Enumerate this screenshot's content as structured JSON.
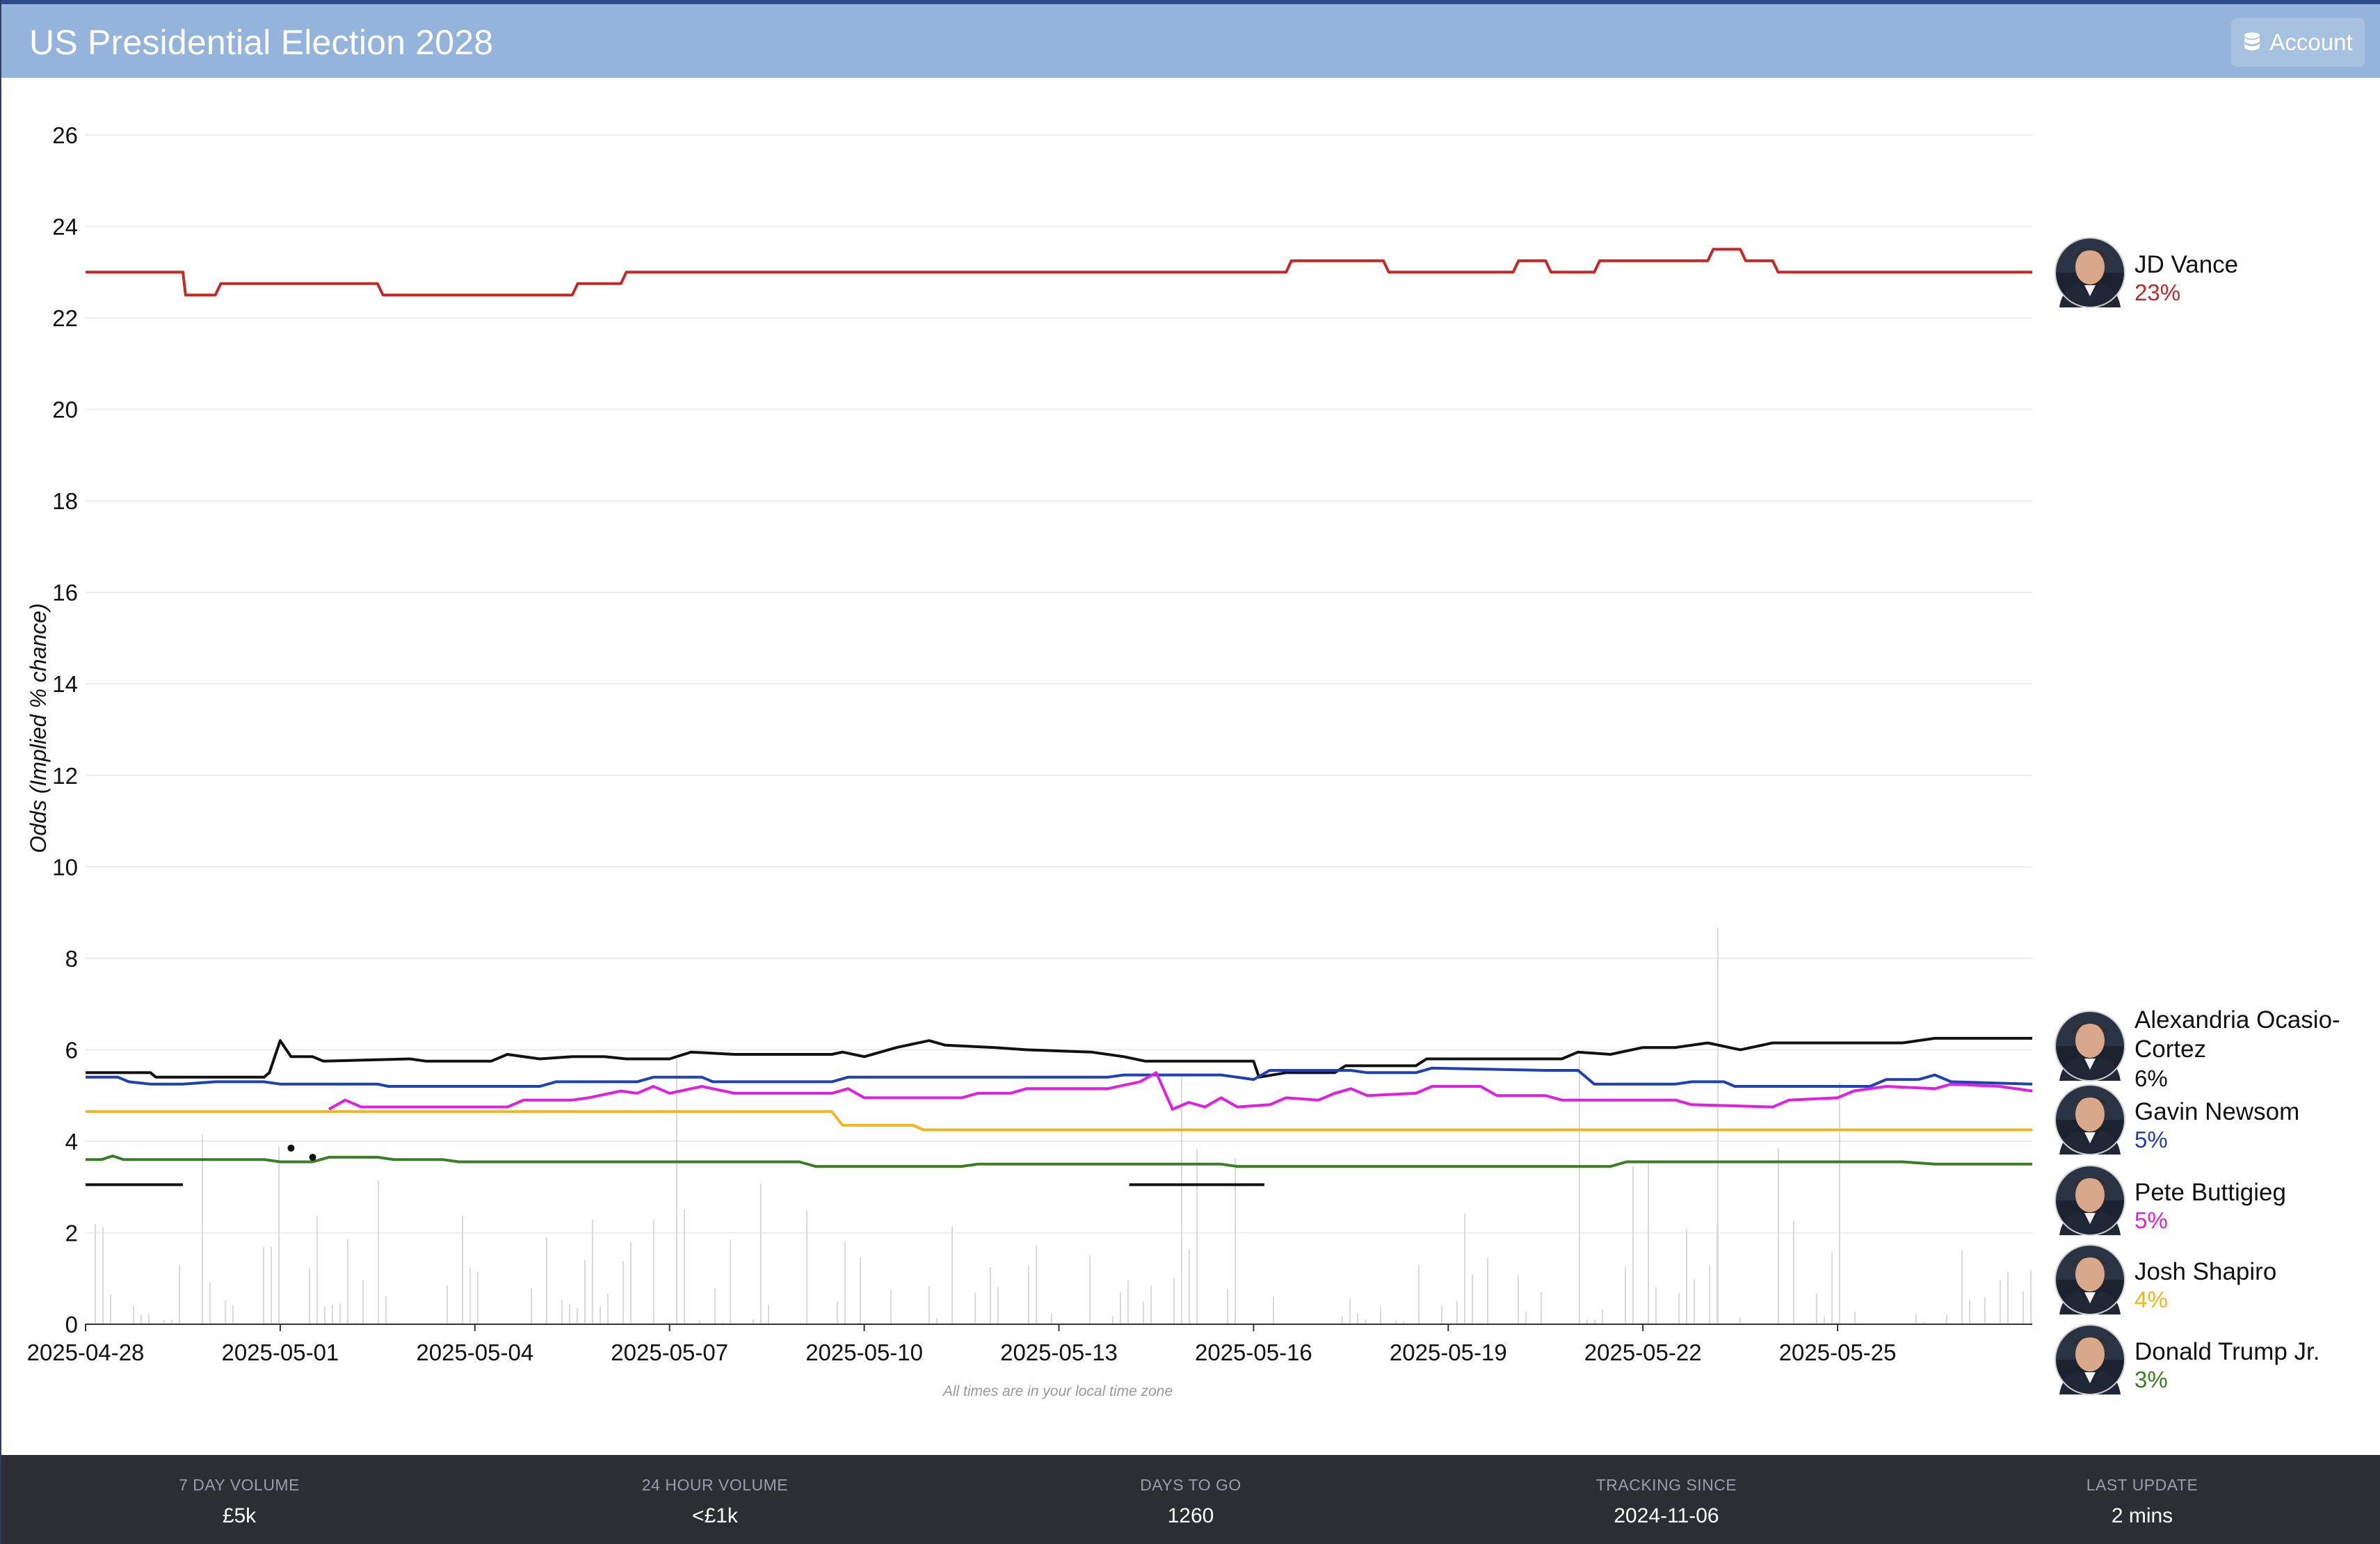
{
  "header": {
    "title": "US Presidential Election 2028",
    "account_label": "Account"
  },
  "chart_data": {
    "type": "line",
    "ylabel": "Odds (Implied % chance)",
    "ylim": [
      0,
      26
    ],
    "yticks": [
      0,
      2,
      4,
      6,
      8,
      10,
      12,
      14,
      16,
      18,
      20,
      22,
      24,
      26
    ],
    "xlim": [
      "2025-04-28",
      "2025-05-28"
    ],
    "xticks": [
      "2025-04-28",
      "2025-05-01",
      "2025-05-04",
      "2025-05-07",
      "2025-05-10",
      "2025-05-13",
      "2025-05-16",
      "2025-05-19",
      "2025-05-22",
      "2025-05-25"
    ],
    "grid": true,
    "note": "All times are in your local time zone",
    "series": [
      {
        "name": "JD Vance",
        "label": "23%",
        "color": "#c62828",
        "points": [
          [
            "2025-04-28",
            23.0
          ],
          [
            "2025-04-29 12:00",
            23.0
          ],
          [
            "2025-04-29 13:00",
            22.5
          ],
          [
            "2025-04-30",
            22.5
          ],
          [
            "2025-04-30 02:00",
            22.75
          ],
          [
            "2025-05-02 12:00",
            22.75
          ],
          [
            "2025-05-02 14:00",
            22.5
          ],
          [
            "2025-05-05 12:00",
            22.5
          ],
          [
            "2025-05-05 14:00",
            22.75
          ],
          [
            "2025-05-06 06:00",
            22.75
          ],
          [
            "2025-05-06 08:00",
            23.0
          ],
          [
            "2025-05-16 12:00",
            23.0
          ],
          [
            "2025-05-16 14:00",
            23.25
          ],
          [
            "2025-05-18",
            23.25
          ],
          [
            "2025-05-18 02:00",
            23.0
          ],
          [
            "2025-05-20",
            23.0
          ],
          [
            "2025-05-20 02:00",
            23.25
          ],
          [
            "2025-05-20 12:00",
            23.25
          ],
          [
            "2025-05-20 14:00",
            23.0
          ],
          [
            "2025-05-21 06:00",
            23.0
          ],
          [
            "2025-05-21 08:00",
            23.25
          ],
          [
            "2025-05-23",
            23.25
          ],
          [
            "2025-05-23 02:00",
            23.5
          ],
          [
            "2025-05-23 12:00",
            23.5
          ],
          [
            "2025-05-23 14:00",
            23.25
          ],
          [
            "2025-05-24",
            23.25
          ],
          [
            "2025-05-24 02:00",
            23.0
          ],
          [
            "2025-05-28",
            23.0
          ]
        ]
      },
      {
        "name": "Alexandria Ocasio-Cortez",
        "label": "6%",
        "color": "#111111",
        "points": [
          [
            "2025-04-28",
            5.5
          ],
          [
            "2025-04-29",
            5.5
          ],
          [
            "2025-04-29 02:00",
            5.4
          ],
          [
            "2025-04-30 18:00",
            5.4
          ],
          [
            "2025-04-30 20:00",
            5.5
          ],
          [
            "2025-05-01",
            6.2
          ],
          [
            "2025-05-01 04:00",
            5.85
          ],
          [
            "2025-05-01 12:00",
            5.85
          ],
          [
            "2025-05-01 16:00",
            5.75
          ],
          [
            "2025-05-03",
            5.8
          ],
          [
            "2025-05-03 06:00",
            5.75
          ],
          [
            "2025-05-04 06:00",
            5.75
          ],
          [
            "2025-05-04 12:00",
            5.9
          ],
          [
            "2025-05-05",
            5.8
          ],
          [
            "2025-05-05 12:00",
            5.85
          ],
          [
            "2025-05-06",
            5.85
          ],
          [
            "2025-05-06 08:00",
            5.8
          ],
          [
            "2025-05-07",
            5.8
          ],
          [
            "2025-05-07 08:00",
            5.95
          ],
          [
            "2025-05-08",
            5.9
          ],
          [
            "2025-05-09 12:00",
            5.9
          ],
          [
            "2025-05-09 16:00",
            5.95
          ],
          [
            "2025-05-10",
            5.85
          ],
          [
            "2025-05-10 12:00",
            6.05
          ],
          [
            "2025-05-11",
            6.2
          ],
          [
            "2025-05-11 06:00",
            6.1
          ],
          [
            "2025-05-12",
            6.05
          ],
          [
            "2025-05-12 12:00",
            6.0
          ],
          [
            "2025-05-13 12:00",
            5.95
          ],
          [
            "2025-05-14",
            5.85
          ],
          [
            "2025-05-14 08:00",
            5.75
          ],
          [
            "2025-05-16",
            5.75
          ],
          [
            "2025-05-16 02:00",
            5.4
          ],
          [
            "2025-05-16 12:00",
            5.5
          ],
          [
            "2025-05-17 06:00",
            5.5
          ],
          [
            "2025-05-17 10:00",
            5.65
          ],
          [
            "2025-05-18 12:00",
            5.65
          ],
          [
            "2025-05-18 16:00",
            5.8
          ],
          [
            "2025-05-20 18:00",
            5.8
          ],
          [
            "2025-05-21",
            5.95
          ],
          [
            "2025-05-21 12:00",
            5.9
          ],
          [
            "2025-05-22",
            6.05
          ],
          [
            "2025-05-22 12:00",
            6.05
          ],
          [
            "2025-05-23",
            6.15
          ],
          [
            "2025-05-23 12:00",
            6.0
          ],
          [
            "2025-05-24",
            6.15
          ],
          [
            "2025-05-25",
            6.15
          ],
          [
            "2025-05-26",
            6.15
          ],
          [
            "2025-05-26 12:00",
            6.25
          ],
          [
            "2025-05-28",
            6.25
          ]
        ]
      },
      {
        "name": "Gavin Newsom",
        "label": "5%",
        "color": "#1f3fb5",
        "points": [
          [
            "2025-04-28",
            5.4
          ],
          [
            "2025-04-28 12:00",
            5.4
          ],
          [
            "2025-04-28 16:00",
            5.3
          ],
          [
            "2025-04-29",
            5.25
          ],
          [
            "2025-04-29 12:00",
            5.25
          ],
          [
            "2025-04-30",
            5.3
          ],
          [
            "2025-04-30 18:00",
            5.3
          ],
          [
            "2025-05-01",
            5.25
          ],
          [
            "2025-05-02 12:00",
            5.25
          ],
          [
            "2025-05-02 16:00",
            5.2
          ],
          [
            "2025-05-05",
            5.2
          ],
          [
            "2025-05-05 06:00",
            5.3
          ],
          [
            "2025-05-06 12:00",
            5.3
          ],
          [
            "2025-05-06 18:00",
            5.4
          ],
          [
            "2025-05-07 12:00",
            5.4
          ],
          [
            "2025-05-07 16:00",
            5.3
          ],
          [
            "2025-05-09 12:00",
            5.3
          ],
          [
            "2025-05-09 18:00",
            5.4
          ],
          [
            "2025-05-13 18:00",
            5.4
          ],
          [
            "2025-05-14",
            5.45
          ],
          [
            "2025-05-15 12:00",
            5.45
          ],
          [
            "2025-05-16",
            5.35
          ],
          [
            "2025-05-16 06:00",
            5.55
          ],
          [
            "2025-05-17 12:00",
            5.55
          ],
          [
            "2025-05-17 18:00",
            5.5
          ],
          [
            "2025-05-18 12:00",
            5.5
          ],
          [
            "2025-05-18 18:00",
            5.6
          ],
          [
            "2025-05-20 12:00",
            5.55
          ],
          [
            "2025-05-21",
            5.55
          ],
          [
            "2025-05-21 06:00",
            5.25
          ],
          [
            "2025-05-22 12:00",
            5.25
          ],
          [
            "2025-05-22 18:00",
            5.3
          ],
          [
            "2025-05-23 06:00",
            5.3
          ],
          [
            "2025-05-23 10:00",
            5.2
          ],
          [
            "2025-05-25 12:00",
            5.2
          ],
          [
            "2025-05-25 18:00",
            5.35
          ],
          [
            "2025-05-26 06:00",
            5.35
          ],
          [
            "2025-05-26 12:00",
            5.45
          ],
          [
            "2025-05-26 18:00",
            5.3
          ],
          [
            "2025-05-28",
            5.25
          ]
        ]
      },
      {
        "name": "Pete Buttigieg",
        "label": "5%",
        "color": "#e020e0",
        "points": [
          [
            "2025-05-01 18:00",
            4.7
          ],
          [
            "2025-05-02",
            4.9
          ],
          [
            "2025-05-02 06:00",
            4.75
          ],
          [
            "2025-05-04 12:00",
            4.75
          ],
          [
            "2025-05-04 18:00",
            4.9
          ],
          [
            "2025-05-05 12:00",
            4.9
          ],
          [
            "2025-05-05 18:00",
            4.95
          ],
          [
            "2025-05-06 06:00",
            5.1
          ],
          [
            "2025-05-06 12:00",
            5.05
          ],
          [
            "2025-05-06 18:00",
            5.2
          ],
          [
            "2025-05-07",
            5.05
          ],
          [
            "2025-05-07 12:00",
            5.2
          ],
          [
            "2025-05-08",
            5.05
          ],
          [
            "2025-05-09 12:00",
            5.05
          ],
          [
            "2025-05-09 18:00",
            5.15
          ],
          [
            "2025-05-10",
            4.95
          ],
          [
            "2025-05-11 12:00",
            4.95
          ],
          [
            "2025-05-11 18:00",
            5.05
          ],
          [
            "2025-05-12 06:00",
            5.05
          ],
          [
            "2025-05-12 12:00",
            5.15
          ],
          [
            "2025-05-13 18:00",
            5.15
          ],
          [
            "2025-05-14 06:00",
            5.3
          ],
          [
            "2025-05-14 12:00",
            5.5
          ],
          [
            "2025-05-14 18:00",
            4.7
          ],
          [
            "2025-05-15",
            4.85
          ],
          [
            "2025-05-15 06:00",
            4.75
          ],
          [
            "2025-05-15 12:00",
            4.95
          ],
          [
            "2025-05-15 18:00",
            4.75
          ],
          [
            "2025-05-16 06:00",
            4.8
          ],
          [
            "2025-05-16 12:00",
            4.95
          ],
          [
            "2025-05-17",
            4.9
          ],
          [
            "2025-05-17 06:00",
            5.05
          ],
          [
            "2025-05-17 12:00",
            5.15
          ],
          [
            "2025-05-17 18:00",
            5.0
          ],
          [
            "2025-05-18 12:00",
            5.05
          ],
          [
            "2025-05-18 18:00",
            5.2
          ],
          [
            "2025-05-19 12:00",
            5.2
          ],
          [
            "2025-05-19 18:00",
            5.0
          ],
          [
            "2025-05-20 12:00",
            5.0
          ],
          [
            "2025-05-20 18:00",
            4.9
          ],
          [
            "2025-05-22 12:00",
            4.9
          ],
          [
            "2025-05-22 18:00",
            4.8
          ],
          [
            "2025-05-24",
            4.75
          ],
          [
            "2025-05-24 06:00",
            4.9
          ],
          [
            "2025-05-25",
            4.95
          ],
          [
            "2025-05-25 06:00",
            5.1
          ],
          [
            "2025-05-25 18:00",
            5.2
          ],
          [
            "2025-05-26 12:00",
            5.15
          ],
          [
            "2025-05-26 18:00",
            5.25
          ],
          [
            "2025-05-27 12:00",
            5.2
          ],
          [
            "2025-05-28",
            5.1
          ]
        ]
      },
      {
        "name": "Josh Shapiro",
        "label": "4%",
        "color": "#f2b61c",
        "points": [
          [
            "2025-04-28",
            4.65
          ],
          [
            "2025-05-09 12:00",
            4.65
          ],
          [
            "2025-05-09 16:00",
            4.35
          ],
          [
            "2025-05-10 18:00",
            4.35
          ],
          [
            "2025-05-10 22:00",
            4.25
          ],
          [
            "2025-05-28",
            4.25
          ]
        ]
      },
      {
        "name": "Donald Trump Jr.",
        "label": "3%",
        "color": "#3b7d23",
        "points": [
          [
            "2025-04-28",
            3.6
          ],
          [
            "2025-04-28 06:00",
            3.6
          ],
          [
            "2025-04-28 10:00",
            3.68
          ],
          [
            "2025-04-28 14:00",
            3.6
          ],
          [
            "2025-04-30 18:00",
            3.6
          ],
          [
            "2025-05-01",
            3.55
          ],
          [
            "2025-05-01 12:00",
            3.55
          ],
          [
            "2025-05-01 18:00",
            3.65
          ],
          [
            "2025-05-02 12:00",
            3.65
          ],
          [
            "2025-05-02 18:00",
            3.6
          ],
          [
            "2025-05-03 12:00",
            3.6
          ],
          [
            "2025-05-03 18:00",
            3.55
          ],
          [
            "2025-05-09",
            3.55
          ],
          [
            "2025-05-09 06:00",
            3.45
          ],
          [
            "2025-05-11 12:00",
            3.45
          ],
          [
            "2025-05-11 18:00",
            3.5
          ],
          [
            "2025-05-15 12:00",
            3.5
          ],
          [
            "2025-05-15 18:00",
            3.45
          ],
          [
            "2025-05-21 12:00",
            3.45
          ],
          [
            "2025-05-21 18:00",
            3.55
          ],
          [
            "2025-05-26",
            3.55
          ],
          [
            "2025-05-26 12:00",
            3.5
          ],
          [
            "2025-05-28",
            3.5
          ]
        ]
      }
    ],
    "extra_marks": {
      "segments": [
        {
          "from": "2025-04-28",
          "to": "2025-04-29 12:00",
          "y": 3.05
        },
        {
          "from": "2025-05-14 02:00",
          "to": "2025-05-16 04:00",
          "y": 3.05
        }
      ],
      "dots": [
        {
          "x": "2025-05-01 04:00",
          "y": 3.85
        },
        {
          "x": "2025-05-01 12:00",
          "y": 3.65
        }
      ]
    }
  },
  "stats": [
    {
      "label": "7 DAY VOLUME",
      "value": "£5k"
    },
    {
      "label": "24 HOUR VOLUME",
      "value": "<£1k"
    },
    {
      "label": "DAYS TO GO",
      "value": "1260"
    },
    {
      "label": "TRACKING SINCE",
      "value": "2024-11-06"
    },
    {
      "label": "LAST UPDATE",
      "value": "2 mins"
    }
  ],
  "colors": {
    "header_bg": "#94b4db",
    "header_border": "#2d4a8c",
    "footer_bg": "#2c2e33",
    "grid": "#ececec",
    "volume_bars": "#d9d9d9"
  }
}
